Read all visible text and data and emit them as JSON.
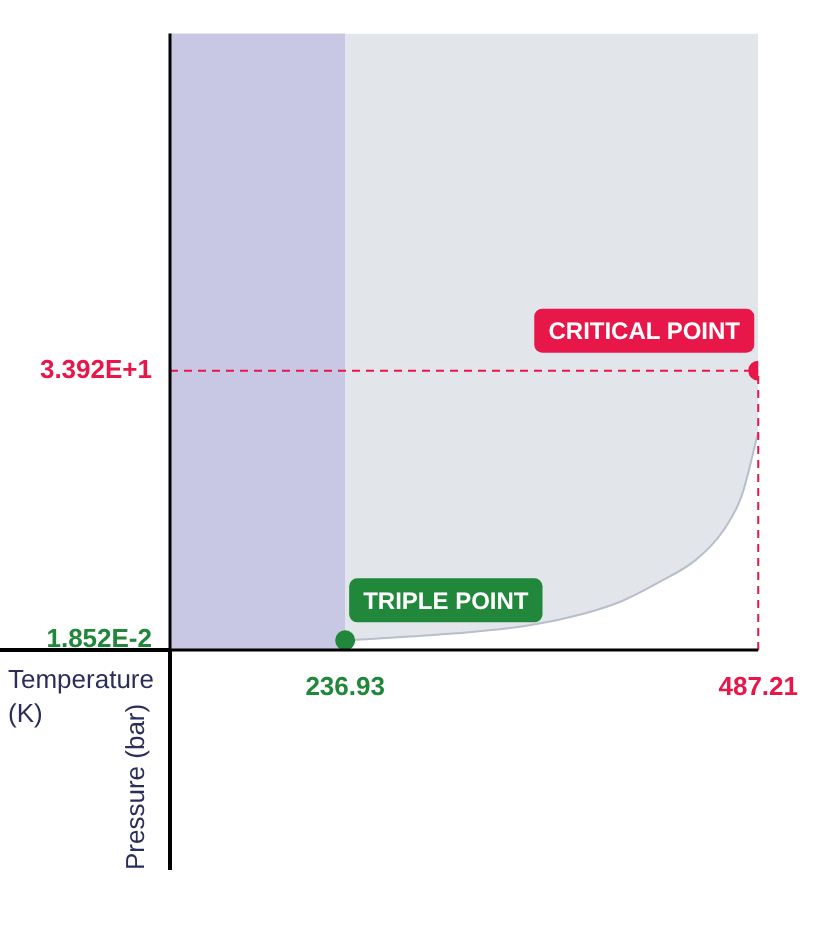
{
  "chart_data": {
    "type": "area",
    "xlabel": "Temperature (K)",
    "ylabel": "Pressure (bar)",
    "xlim": [
      130.8,
      487.21
    ],
    "ylim": [
      -1.2,
      76.3
    ],
    "xticks": [
      {
        "value": 236.93,
        "label": "236.93"
      },
      {
        "value": 487.21,
        "label": "487.21"
      }
    ],
    "yticks": [
      {
        "value": 0.01852,
        "label": "1.852E-2"
      },
      {
        "value": 33.92,
        "label": "3.392E+1"
      }
    ],
    "grid": false,
    "legend": false,
    "bands": [
      {
        "axis": "x",
        "from": 130.8,
        "to": 236.93,
        "color": "#c8c8e4"
      }
    ],
    "ref_lines": [
      {
        "axis": "y",
        "value": 33.92,
        "color": "#e8174a",
        "line_style": "dashed"
      },
      {
        "axis": "x",
        "value": 487.21,
        "color": "#e8174a",
        "line_style": "dashed"
      }
    ],
    "annotations": [
      {
        "text": "TRIPLE POINT",
        "x": 236.93,
        "y": 0.01852
      },
      {
        "text": "CRITICAL POINT",
        "x": 487.21,
        "y": 33.92
      }
    ],
    "series": [
      {
        "type": "line",
        "color": "#b7bfcb",
        "x": [
          236.93,
          304,
          348.7,
          382,
          404,
          426.9,
          449.2,
          466,
          477.2,
          487.21
        ],
        "values": [
          0.01852,
          0.9,
          1.9,
          3.4,
          4.9,
          7.3,
          10.1,
          13.8,
          18.2,
          26.2
        ],
        "lower": [
          0.01852,
          0.9,
          1.9,
          3.4,
          4.9,
          7.3,
          10.1,
          13.8,
          18.2,
          26.2
        ],
        "upper": [
          76.3,
          76.3,
          76.3,
          76.3,
          76.3,
          76.3,
          76.3,
          76.3,
          76.3,
          76.3
        ]
      },
      {
        "type": "scatter",
        "marker": "circle",
        "x": [
          236.93,
          487.21
        ],
        "values": [
          0.01852,
          33.92
        ],
        "colors": [
          "#21873a",
          "#e8174a"
        ]
      }
    ]
  }
}
